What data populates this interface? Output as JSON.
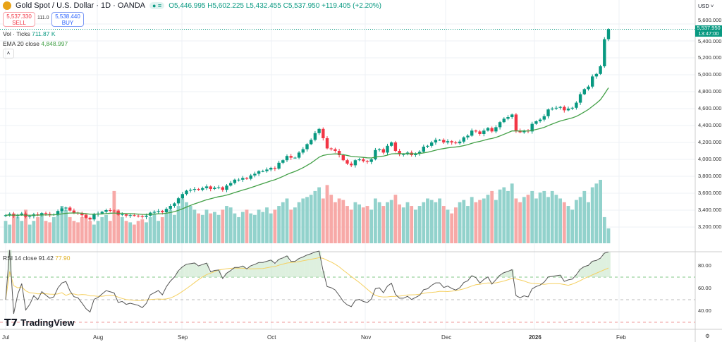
{
  "header": {
    "symbol": "Gold Spot / U.S. Dollar · 1D · OANDA",
    "open": "O5,446.995",
    "high": "H5,602.225",
    "low": "L5,432.455",
    "close": "C5,537.950",
    "change": "+119.405 (+2.20%)"
  },
  "trade": {
    "sell_price": "5,537.330",
    "sell_label": "SELL",
    "spread": "111.0",
    "buy_price": "5,538.440",
    "buy_label": "BUY"
  },
  "legend": {
    "vol_label": "Vol · Ticks",
    "vol_value": "711.87 K",
    "ema_label": "EMA 20 close",
    "ema_value": "4,848.997",
    "rsi_label": "RSI 14 close",
    "rsi_value": "91.42",
    "rsi_ma_value": "77.90"
  },
  "price_axis": {
    "currency": "USD",
    "ticks": [
      "5,600.000",
      "5,400.000",
      "5,200.000",
      "5,000.000",
      "4,800.000",
      "4,600.000",
      "4,400.000",
      "4,200.000",
      "4,000.000",
      "3,800.000",
      "3,600.000",
      "3,400.000",
      "3,200.000"
    ],
    "last_price": "5,537.950",
    "countdown": "13:47:00"
  },
  "rsi_axis": {
    "ticks": [
      "80.00",
      "60.00",
      "40.00"
    ]
  },
  "time_axis": [
    "Jul",
    "Aug",
    "Sep",
    "Oct",
    "Nov",
    "Dec",
    "2026",
    "Feb"
  ],
  "watermark": "TradingView",
  "colors": {
    "up": "#089981",
    "down": "#f23645",
    "ema": "#43a047",
    "rsi": "#555555",
    "rsi_ma": "#f5d060"
  },
  "chart_data": {
    "type": "candlestick",
    "closes": [
      3340,
      3355,
      3330,
      3345,
      3360,
      3320,
      3330,
      3350,
      3340,
      3365,
      3355,
      3345,
      3350,
      3390,
      3420,
      3430,
      3395,
      3370,
      3365,
      3340,
      3310,
      3290,
      3350,
      3360,
      3380,
      3400,
      3395,
      3390,
      3345,
      3350,
      3335,
      3340,
      3335,
      3330,
      3320,
      3335,
      3370,
      3380,
      3390,
      3375,
      3415,
      3450,
      3480,
      3540,
      3590,
      3630,
      3640,
      3650,
      3640,
      3660,
      3680,
      3650,
      3665,
      3670,
      3640,
      3690,
      3720,
      3760,
      3760,
      3780,
      3770,
      3810,
      3830,
      3860,
      3860,
      3880,
      3900,
      3890,
      3960,
      3990,
      4040,
      4020,
      4020,
      4080,
      4120,
      4180,
      4230,
      4310,
      4360,
      4250,
      4130,
      4120,
      4100,
      4050,
      3990,
      3950,
      3930,
      3990,
      4000,
      3980,
      3970,
      4000,
      4110,
      4120,
      4080,
      4160,
      4200,
      4100,
      4060,
      4060,
      4080,
      4050,
      4070,
      4090,
      4150,
      4160,
      4200,
      4230,
      4230,
      4200,
      4215,
      4200,
      4190,
      4210,
      4260,
      4280,
      4340,
      4330,
      4300,
      4340,
      4370,
      4330,
      4380,
      4440,
      4480,
      4500,
      4530,
      4340,
      4320,
      4340,
      4330,
      4420,
      4450,
      4470,
      4510,
      4590,
      4600,
      4610,
      4620,
      4580,
      4600,
      4610,
      4670,
      4770,
      4830,
      4860,
      4980,
      5010,
      5100,
      5420,
      5538
    ],
    "volumes": [
      30,
      25,
      40,
      35,
      30,
      45,
      25,
      30,
      35,
      40,
      30,
      28,
      35,
      40,
      50,
      45,
      35,
      30,
      28,
      35,
      40,
      30,
      25,
      30,
      35,
      38,
      30,
      70,
      45,
      35,
      30,
      28,
      25,
      30,
      32,
      28,
      35,
      40,
      30,
      35,
      40,
      45,
      38,
      50,
      60,
      55,
      50,
      45,
      40,
      38,
      45,
      40,
      42,
      38,
      45,
      50,
      48,
      40,
      35,
      42,
      45,
      40,
      38,
      45,
      42,
      48,
      40,
      45,
      50,
      55,
      60,
      45,
      48,
      55,
      60,
      62,
      65,
      70,
      75,
      60,
      78,
      65,
      55,
      60,
      58,
      50,
      45,
      55,
      52,
      48,
      50,
      45,
      60,
      55,
      50,
      55,
      58,
      65,
      52,
      48,
      55,
      50,
      45,
      50,
      55,
      60,
      58,
      55,
      60,
      50,
      45,
      40,
      48,
      55,
      58,
      50,
      62,
      55,
      58,
      60,
      65,
      70,
      58,
      72,
      75,
      70,
      80,
      60,
      55,
      62,
      65,
      70,
      60,
      68,
      70,
      62,
      70,
      65,
      60,
      55,
      50,
      45,
      58,
      62,
      70,
      55,
      75,
      80,
      85,
      35,
      20
    ],
    "price_range": [
      3000,
      5650
    ],
    "rsi_range": [
      30,
      95
    ],
    "rsi_period": 14,
    "ema_period": 20,
    "x_start": "2025-07-01",
    "x_end": "2026-01-29"
  }
}
